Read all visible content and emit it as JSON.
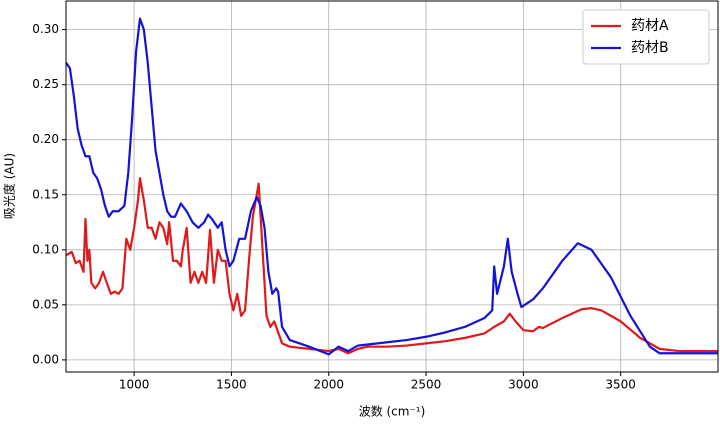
{
  "chart_data": {
    "type": "line",
    "xlabel": "波数 (cm⁻¹)",
    "ylabel": "吸光度 (AU)",
    "xlim": [
      650,
      4000
    ],
    "ylim": [
      -0.011,
      0.326
    ],
    "xticks": [
      1000,
      1500,
      2000,
      2500,
      3000,
      3500
    ],
    "yticks": [
      {
        "value": 0,
        "label": "0.00"
      },
      {
        "value": 0.05,
        "label": "0.05"
      },
      {
        "value": 0.1,
        "label": "0.10"
      },
      {
        "value": 0.15,
        "label": "0.15"
      },
      {
        "value": 0.2,
        "label": "0.20"
      },
      {
        "value": 0.25,
        "label": "0.25"
      },
      {
        "value": 0.3,
        "label": "0.30"
      }
    ],
    "grid": true,
    "legend": "upper right",
    "series": [
      {
        "name": "药材A",
        "color": "#e01a1a",
        "x": [
          650,
          680,
          700,
          720,
          740,
          750,
          760,
          770,
          780,
          800,
          820,
          840,
          860,
          880,
          900,
          920,
          940,
          960,
          980,
          1000,
          1020,
          1030,
          1050,
          1070,
          1090,
          1110,
          1130,
          1150,
          1170,
          1180,
          1200,
          1220,
          1240,
          1250,
          1270,
          1290,
          1310,
          1330,
          1350,
          1370,
          1390,
          1410,
          1430,
          1450,
          1470,
          1490,
          1510,
          1530,
          1550,
          1570,
          1590,
          1610,
          1630,
          1640,
          1660,
          1680,
          1700,
          1720,
          1740,
          1760,
          1800,
          1900,
          2000,
          2050,
          2100,
          2150,
          2200,
          2300,
          2400,
          2500,
          2600,
          2700,
          2800,
          2850,
          2880,
          2900,
          2930,
          2960,
          3000,
          3050,
          3080,
          3100,
          3200,
          3300,
          3350,
          3400,
          3500,
          3600,
          3700,
          3800,
          4000
        ],
        "values": [
          0.095,
          0.098,
          0.088,
          0.09,
          0.08,
          0.128,
          0.09,
          0.1,
          0.07,
          0.065,
          0.07,
          0.08,
          0.07,
          0.06,
          0.062,
          0.06,
          0.065,
          0.11,
          0.1,
          0.12,
          0.145,
          0.165,
          0.145,
          0.12,
          0.12,
          0.11,
          0.125,
          0.12,
          0.105,
          0.125,
          0.09,
          0.09,
          0.085,
          0.1,
          0.12,
          0.07,
          0.08,
          0.07,
          0.08,
          0.07,
          0.118,
          0.07,
          0.1,
          0.09,
          0.09,
          0.06,
          0.045,
          0.06,
          0.04,
          0.045,
          0.09,
          0.13,
          0.15,
          0.16,
          0.1,
          0.04,
          0.03,
          0.035,
          0.025,
          0.015,
          0.012,
          0.01,
          0.008,
          0.01,
          0.006,
          0.01,
          0.012,
          0.012,
          0.013,
          0.015,
          0.017,
          0.02,
          0.024,
          0.03,
          0.033,
          0.035,
          0.042,
          0.035,
          0.027,
          0.026,
          0.03,
          0.029,
          0.038,
          0.046,
          0.047,
          0.045,
          0.035,
          0.02,
          0.01,
          0.008,
          0.008
        ]
      },
      {
        "name": "药材B",
        "color": "#1414d6",
        "x": [
          650,
          670,
          690,
          710,
          730,
          750,
          770,
          790,
          810,
          830,
          850,
          870,
          890,
          920,
          950,
          970,
          990,
          1010,
          1030,
          1050,
          1070,
          1090,
          1110,
          1130,
          1150,
          1170,
          1190,
          1210,
          1240,
          1270,
          1300,
          1330,
          1360,
          1380,
          1400,
          1430,
          1450,
          1470,
          1490,
          1510,
          1540,
          1570,
          1600,
          1630,
          1650,
          1670,
          1690,
          1710,
          1730,
          1740,
          1760,
          1800,
          1900,
          2000,
          2050,
          2100,
          2150,
          2200,
          2300,
          2400,
          2500,
          2600,
          2700,
          2800,
          2840,
          2850,
          2865,
          2900,
          2920,
          2940,
          2970,
          2990,
          3050,
          3100,
          3200,
          3280,
          3350,
          3450,
          3550,
          3650,
          3700,
          3800,
          4000
        ],
        "values": [
          0.27,
          0.265,
          0.24,
          0.21,
          0.195,
          0.185,
          0.185,
          0.17,
          0.165,
          0.155,
          0.14,
          0.13,
          0.135,
          0.135,
          0.14,
          0.17,
          0.22,
          0.28,
          0.31,
          0.3,
          0.27,
          0.23,
          0.19,
          0.17,
          0.15,
          0.135,
          0.13,
          0.13,
          0.142,
          0.135,
          0.125,
          0.12,
          0.125,
          0.132,
          0.128,
          0.12,
          0.125,
          0.1,
          0.085,
          0.09,
          0.11,
          0.11,
          0.135,
          0.148,
          0.14,
          0.12,
          0.08,
          0.06,
          0.065,
          0.062,
          0.03,
          0.018,
          0.012,
          0.005,
          0.012,
          0.008,
          0.013,
          0.014,
          0.016,
          0.018,
          0.021,
          0.025,
          0.03,
          0.038,
          0.045,
          0.085,
          0.06,
          0.085,
          0.11,
          0.08,
          0.06,
          0.048,
          0.055,
          0.065,
          0.09,
          0.106,
          0.1,
          0.075,
          0.04,
          0.012,
          0.006,
          0.006,
          0.006
        ]
      }
    ]
  }
}
